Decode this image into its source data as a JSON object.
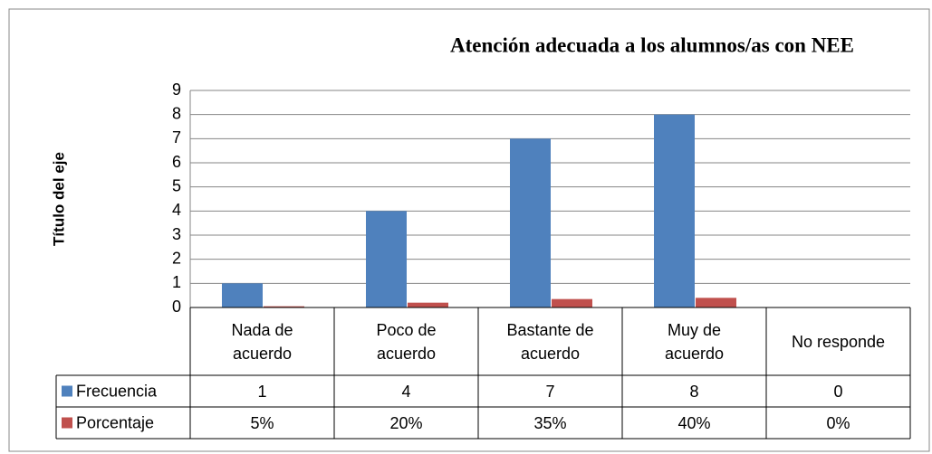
{
  "chart_data": {
    "type": "bar",
    "title": "Atención adecuada a los alumnos/as con NEE",
    "y_axis_label": "Título del eje",
    "categories": [
      "Nada de\nacuerdo",
      "Poco de\nacuerdo",
      "Bastante de\nacuerdo",
      "Muy de\nacuerdo",
      "No responde"
    ],
    "series": [
      {
        "name": "Frecuencia",
        "color": "#4f81bd",
        "values": [
          1,
          4,
          7,
          8,
          0
        ]
      },
      {
        "name": "Porcentaje",
        "color": "#c0504d",
        "values": [
          0.05,
          0.2,
          0.35,
          0.4,
          0
        ],
        "value_labels": [
          "5%",
          "20%",
          "35%",
          "40%",
          "0%"
        ]
      }
    ],
    "ylim": [
      0,
      9
    ],
    "yticks": [
      0,
      1,
      2,
      3,
      4,
      5,
      6,
      7,
      8,
      9
    ],
    "grid": true,
    "data_table": true
  }
}
